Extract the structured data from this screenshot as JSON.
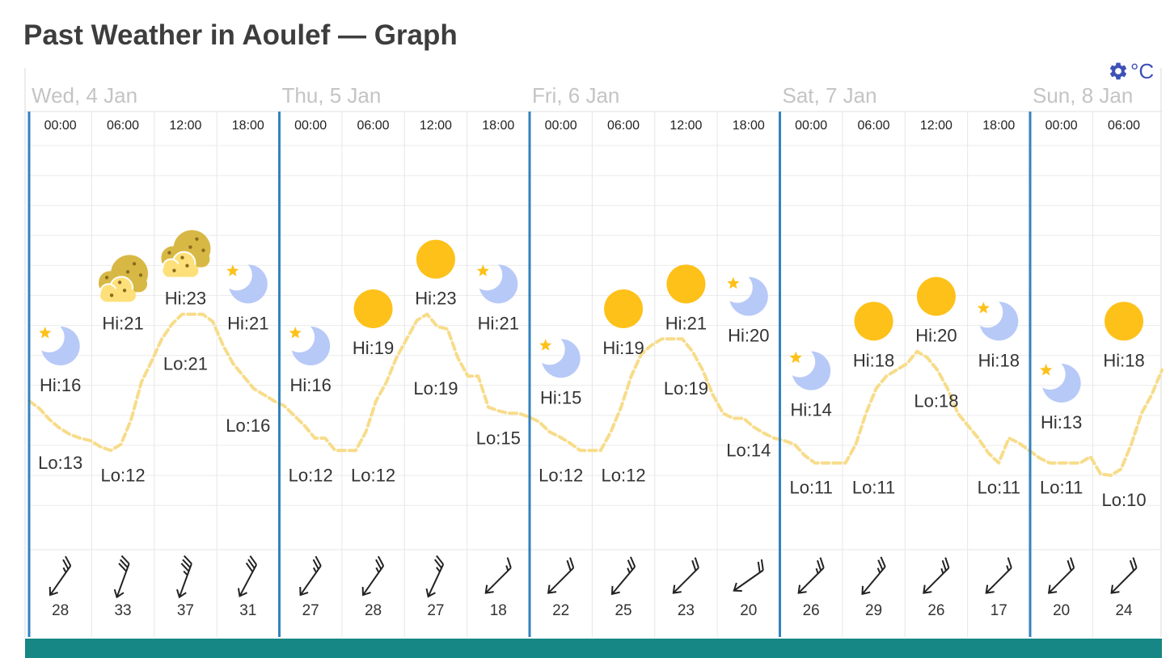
{
  "page": {
    "title": "Past Weather in Aoulef — Graph",
    "unit_label": "°C"
  },
  "colors": {
    "day_line": "#3182c0",
    "temp_curve": "#f7dc8a",
    "sun": "#fdc11a",
    "moon": "#b7c9f7",
    "cloud": "#fde07a",
    "cloud_back": "#d8b845",
    "bottom_bar": "#178785",
    "unit": "#3f51b5"
  },
  "chart_data": {
    "type": "line",
    "title": "Past Weather in Aoulef — Graph",
    "unit": "°C",
    "days": [
      "Wed, 4 Jan",
      "Thu, 5 Jan",
      "Fri, 6 Jan",
      "Sat, 7 Jan",
      "Sun, 8 Jan"
    ],
    "times": [
      "00:00",
      "06:00",
      "12:00",
      "18:00",
      "00:00",
      "06:00",
      "12:00",
      "18:00",
      "00:00",
      "06:00",
      "12:00",
      "18:00",
      "00:00",
      "06:00",
      "12:00",
      "18:00",
      "00:00",
      "06:00"
    ],
    "ylim": [
      4,
      34
    ],
    "periods": [
      {
        "hi": 16,
        "lo": 13,
        "icon": "moon-icon",
        "wind_speed": 28,
        "wind_dir_deg": 55
      },
      {
        "hi": 21,
        "lo": 12,
        "icon": "cloud-icon",
        "wind_speed": 33,
        "wind_dir_deg": 70
      },
      {
        "hi": 23,
        "lo": 21,
        "icon": "cloud-icon",
        "wind_speed": 37,
        "wind_dir_deg": 70
      },
      {
        "hi": 21,
        "lo": 16,
        "icon": "moon-icon",
        "wind_speed": 31,
        "wind_dir_deg": 62
      },
      {
        "hi": 16,
        "lo": 12,
        "icon": "moon-icon",
        "wind_speed": 27,
        "wind_dir_deg": 55
      },
      {
        "hi": 19,
        "lo": 12,
        "icon": "sun-icon",
        "wind_speed": 28,
        "wind_dir_deg": 55
      },
      {
        "hi": 23,
        "lo": 19,
        "icon": "sun-icon",
        "wind_speed": 27,
        "wind_dir_deg": 65
      },
      {
        "hi": 21,
        "lo": 15,
        "icon": "moon-icon",
        "wind_speed": 18,
        "wind_dir_deg": 45
      },
      {
        "hi": 15,
        "lo": 12,
        "icon": "moon-icon",
        "wind_speed": 22,
        "wind_dir_deg": 45
      },
      {
        "hi": 19,
        "lo": 12,
        "icon": "sun-icon",
        "wind_speed": 25,
        "wind_dir_deg": 50
      },
      {
        "hi": 21,
        "lo": 19,
        "icon": "sun-icon",
        "wind_speed": 23,
        "wind_dir_deg": 45
      },
      {
        "hi": 20,
        "lo": 14,
        "icon": "moon-icon",
        "wind_speed": 20,
        "wind_dir_deg": 35
      },
      {
        "hi": 14,
        "lo": 11,
        "icon": "moon-icon",
        "wind_speed": 26,
        "wind_dir_deg": 45
      },
      {
        "hi": 18,
        "lo": 11,
        "icon": "sun-icon",
        "wind_speed": 29,
        "wind_dir_deg": 50
      },
      {
        "hi": 20,
        "lo": 18,
        "icon": "sun-icon",
        "wind_speed": 26,
        "wind_dir_deg": 45
      },
      {
        "hi": 18,
        "lo": 11,
        "icon": "moon-icon",
        "wind_speed": 17,
        "wind_dir_deg": 45
      },
      {
        "hi": 13,
        "lo": 11,
        "icon": "moon-icon",
        "wind_speed": 20,
        "wind_dir_deg": 45
      },
      {
        "hi": 18,
        "lo": 10,
        "icon": "sun-icon",
        "wind_speed": 24,
        "wind_dir_deg": 45
      }
    ],
    "hourly_temps": [
      16,
      15.4,
      14.5,
      13.8,
      13.3,
      13,
      12.8,
      12.3,
      12,
      12.5,
      14.5,
      17.5,
      19.2,
      21,
      22.2,
      23,
      23,
      23,
      22.4,
      20.5,
      19,
      18,
      17,
      16.5,
      16,
      15.6,
      14.8,
      14,
      13,
      13,
      12,
      12,
      12,
      13.5,
      16,
      17.5,
      19.5,
      21,
      22.5,
      23,
      22,
      21.8,
      19.5,
      18,
      18,
      15.5,
      15.2,
      15,
      15,
      14.7,
      14.3,
      13.5,
      13.1,
      12.6,
      12,
      12,
      12,
      13.5,
      15.5,
      18,
      19.8,
      20.5,
      21,
      21,
      21,
      20,
      18.5,
      16.5,
      15,
      14.6,
      14.6,
      13.9,
      13.4,
      13,
      12.8,
      12.5,
      11.6,
      11,
      11,
      11,
      11,
      12.5,
      15,
      17,
      18,
      18.5,
      19,
      20,
      19.5,
      18.5,
      17,
      15,
      14,
      13,
      11.8,
      11,
      13,
      12.6,
      12,
      11.4,
      11,
      11,
      11,
      11,
      11.5,
      10.1,
      10,
      10.5,
      12.5,
      15,
      16.5,
      18.5
    ],
    "series": [
      {
        "values": [
          16,
          15.4,
          14.5,
          13.8
        ]
      }
    ]
  }
}
